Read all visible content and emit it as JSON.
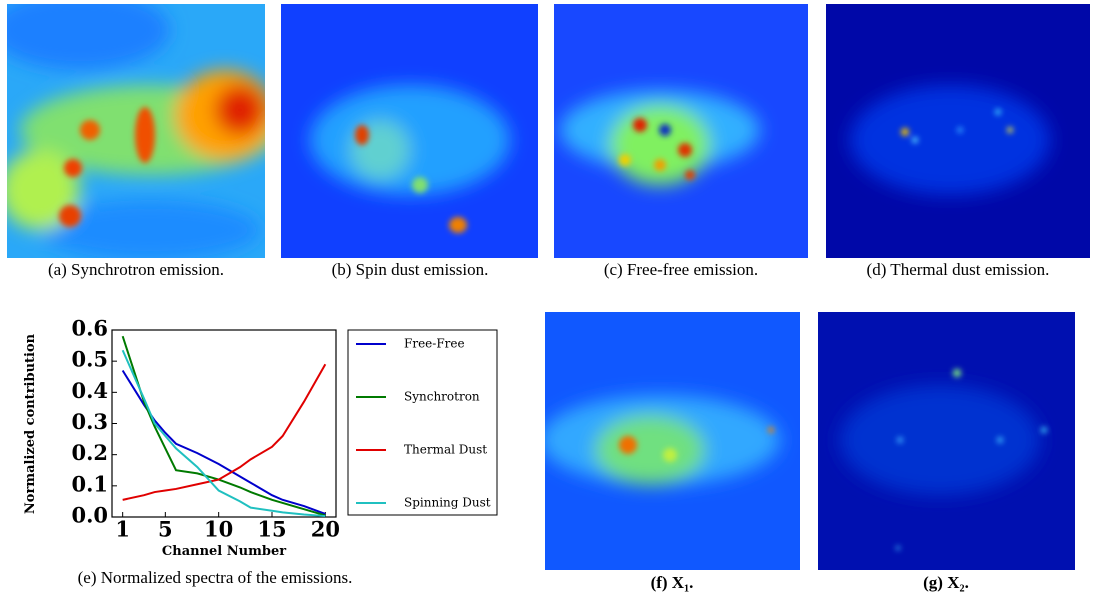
{
  "captions": {
    "a": "(a) Synchrotron emission.",
    "b": "(b) Spin dust emission.",
    "c": "(c) Free-free emission.",
    "d": "(d) Thermal dust emission.",
    "e": "(e) Normalized spectra of the emissions.",
    "f": "(f) X₁.",
    "g": "(g) X₂."
  },
  "chart_data": {
    "type": "line",
    "xlabel": "Channel Number",
    "ylabel": "Normalized contribution",
    "x": [
      1,
      3,
      4,
      5,
      6,
      8,
      10,
      12,
      13,
      15,
      16,
      18,
      20
    ],
    "series": [
      {
        "name": "Free-Free",
        "color": "#0000cc",
        "values": [
          0.47,
          0.36,
          0.31,
          0.27,
          0.235,
          0.205,
          0.17,
          0.13,
          0.11,
          0.07,
          0.055,
          0.035,
          0.01
        ]
      },
      {
        "name": "Synchrotron",
        "color": "#007a00",
        "values": [
          0.58,
          0.37,
          0.29,
          0.22,
          0.15,
          0.14,
          0.12,
          0.095,
          0.08,
          0.055,
          0.045,
          0.025,
          0.005
        ]
      },
      {
        "name": "Thermal Dust",
        "color": "#e00000",
        "values": [
          0.055,
          0.07,
          0.08,
          0.085,
          0.09,
          0.105,
          0.12,
          0.16,
          0.185,
          0.225,
          0.26,
          0.37,
          0.49
        ]
      },
      {
        "name": "Spinning Dust",
        "color": "#20c0c0",
        "values": [
          0.535,
          0.38,
          0.3,
          0.26,
          0.22,
          0.16,
          0.085,
          0.05,
          0.03,
          0.02,
          0.015,
          0.008,
          0.003
        ]
      }
    ],
    "xlim": [
      0,
      21
    ],
    "xticks": [
      1,
      5,
      10,
      15,
      20
    ],
    "ylim": [
      0,
      0.6
    ],
    "yticks": [
      {
        "value": 0,
        "label": "0.0"
      },
      0.1,
      0.2,
      0.3,
      0.4,
      0.5,
      0.6
    ]
  }
}
